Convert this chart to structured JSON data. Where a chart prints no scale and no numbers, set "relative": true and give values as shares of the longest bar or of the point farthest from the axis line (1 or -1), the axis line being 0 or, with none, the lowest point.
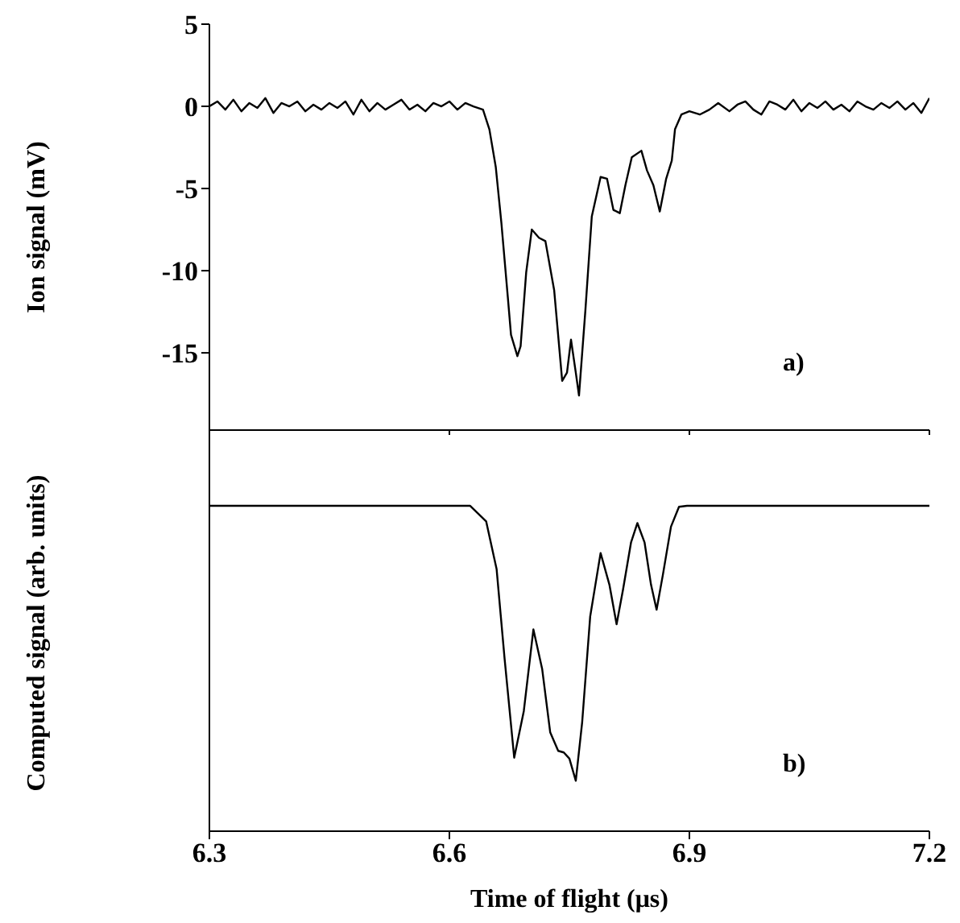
{
  "chart_data": [
    {
      "type": "line",
      "ylabel": "Ion signal (mV)",
      "xlim": [
        6.3,
        7.2
      ],
      "xticks": [
        6.3,
        6.6,
        6.9,
        7.2
      ],
      "ylim": [
        -19.7,
        5
      ],
      "yticks": [
        5,
        0,
        -5,
        -10,
        -15
      ],
      "tick_labels": "y",
      "annotations": [
        "a)"
      ],
      "series": [
        {
          "color": "#000000",
          "x": [
            6.3,
            6.31,
            6.32,
            6.33,
            6.34,
            6.35,
            6.36,
            6.37,
            6.38,
            6.39,
            6.4,
            6.41,
            6.42,
            6.43,
            6.44,
            6.45,
            6.46,
            6.47,
            6.48,
            6.49,
            6.5,
            6.51,
            6.52,
            6.53,
            6.54,
            6.55,
            6.56,
            6.57,
            6.58,
            6.59,
            6.6,
            6.61,
            6.62,
            6.63,
            6.642,
            6.65,
            6.658,
            6.665,
            6.673,
            6.677,
            6.685,
            6.689,
            6.696,
            6.703,
            6.712,
            6.72,
            6.731,
            6.741,
            6.747,
            6.752,
            6.758,
            6.762,
            6.77,
            6.778,
            6.789,
            6.797,
            6.805,
            6.813,
            6.82,
            6.828,
            6.84,
            6.847,
            6.855,
            6.863,
            6.871,
            6.878,
            6.882,
            6.89,
            6.9,
            6.913,
            6.925,
            6.936,
            6.95,
            6.96,
            6.97,
            6.98,
            6.99,
            7.0,
            7.01,
            7.02,
            7.03,
            7.04,
            7.05,
            7.06,
            7.07,
            7.08,
            7.09,
            7.1,
            7.11,
            7.12,
            7.13,
            7.14,
            7.15,
            7.16,
            7.17,
            7.18,
            7.19,
            7.2
          ],
          "values": [
            0,
            0.3,
            -0.2,
            0.4,
            -0.3,
            0.2,
            -0.1,
            0.5,
            -0.4,
            0.2,
            0,
            0.3,
            -0.3,
            0.1,
            -0.2,
            0.2,
            -0.1,
            0.3,
            -0.5,
            0.4,
            -0.3,
            0.2,
            -0.2,
            0.1,
            0.4,
            -0.2,
            0.1,
            -0.3,
            0.2,
            0,
            0.3,
            -0.2,
            0.2,
            0,
            -0.2,
            -1.4,
            -3.7,
            -7.1,
            -11.6,
            -13.9,
            -15.2,
            -14.6,
            -10.1,
            -7.5,
            -8,
            -8.2,
            -11.2,
            -16.7,
            -16.2,
            -14.2,
            -16.2,
            -17.6,
            -12.4,
            -6.7,
            -4.3,
            -4.4,
            -6.3,
            -6.5,
            -4.8,
            -3.1,
            -2.7,
            -3.9,
            -4.8,
            -6.4,
            -4.4,
            -3.3,
            -1.4,
            -0.5,
            -0.3,
            -0.5,
            -0.2,
            0.2,
            -0.3,
            0.1,
            0.3,
            -0.2,
            -0.5,
            0.3,
            0.1,
            -0.2,
            0.4,
            -0.3,
            0.2,
            -0.1,
            0.3,
            -0.2,
            0.1,
            -0.3,
            0.3,
            0,
            -0.2,
            0.2,
            -0.1,
            0.3,
            -0.2,
            0.2,
            -0.4,
            0.5
          ]
        }
      ]
    },
    {
      "type": "line",
      "xlabel": "Time of flight (μs)",
      "ylabel": "Computed signal (arb. units)",
      "relative": true,
      "xlim": [
        6.3,
        7.2
      ],
      "xticks": [
        6.3,
        6.6,
        6.9,
        7.2
      ],
      "tick_labels": "x",
      "annotations": [
        "b)"
      ],
      "series": [
        {
          "color": "#000000",
          "x": [
            6.3,
            6.626,
            6.646,
            6.659,
            6.669,
            6.681,
            6.693,
            6.705,
            6.716,
            6.726,
            6.736,
            6.743,
            6.75,
            6.758,
            6.766,
            6.776,
            6.789,
            6.8,
            6.809,
            6.817,
            6.827,
            6.835,
            6.844,
            6.852,
            6.859,
            6.867,
            6.877,
            6.887,
            6.897,
            7.2
          ],
          "values": [
            1,
            1,
            0.952,
            0.806,
            0.53,
            0.226,
            0.369,
            0.62,
            0.498,
            0.304,
            0.247,
            0.242,
            0.223,
            0.155,
            0.336,
            0.66,
            0.855,
            0.758,
            0.636,
            0.742,
            0.887,
            0.947,
            0.887,
            0.758,
            0.681,
            0.79,
            0.936,
            0.997,
            1,
            1
          ]
        }
      ]
    }
  ]
}
